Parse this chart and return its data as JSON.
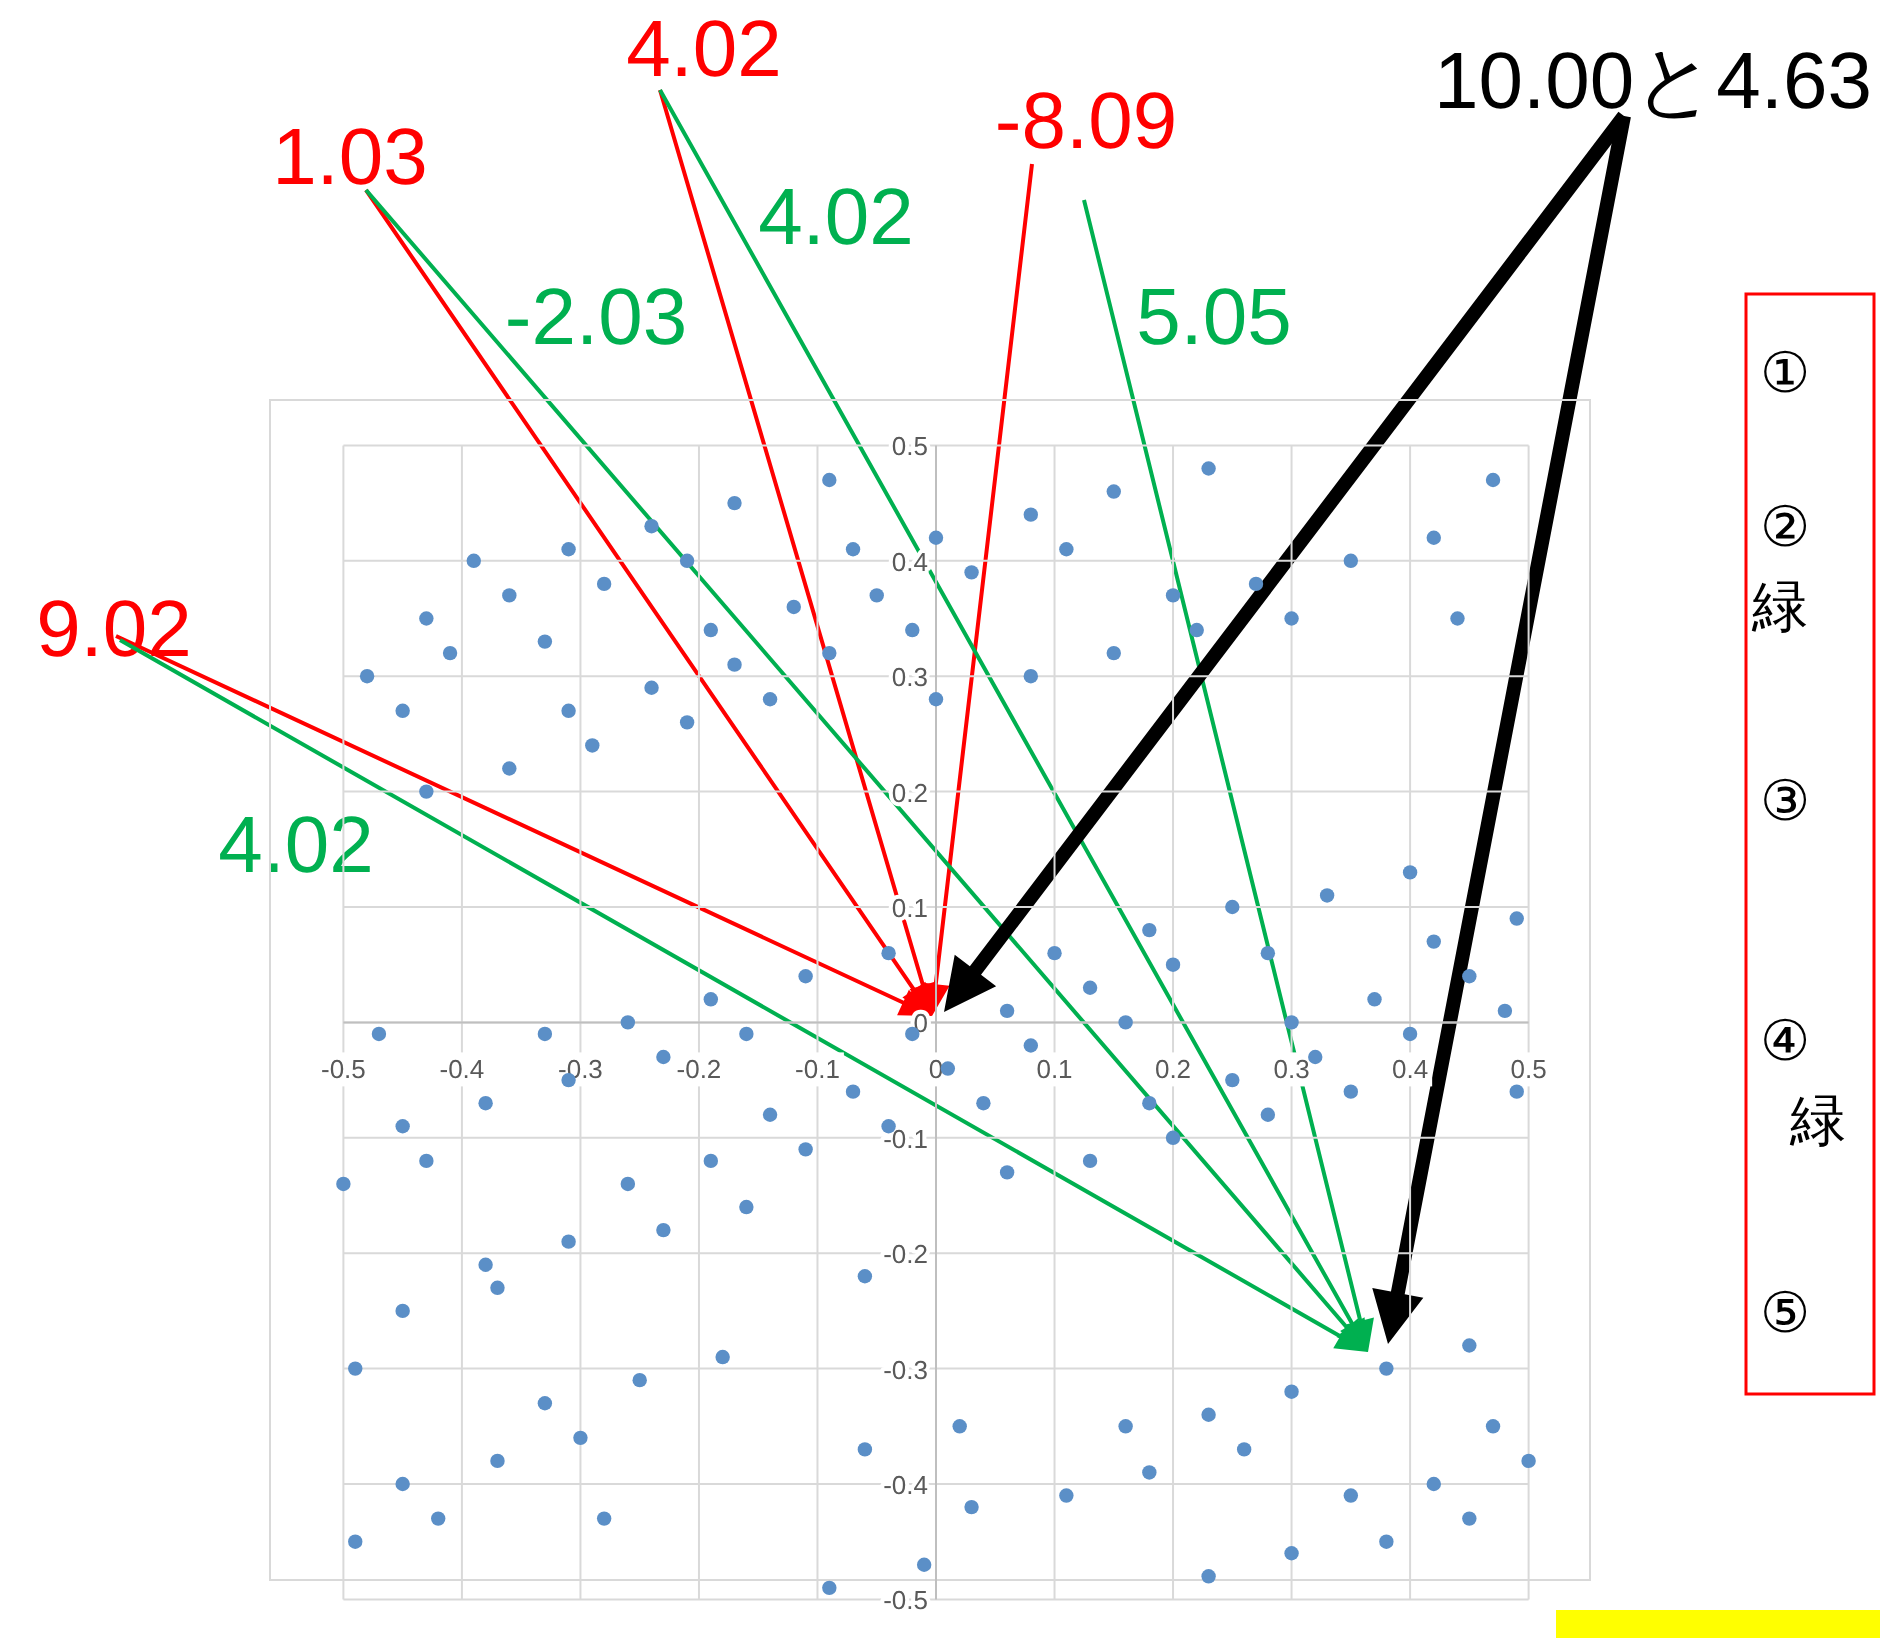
{
  "chart_data": {
    "type": "scatter",
    "marker": "circle",
    "grid": true,
    "color": "#5b8fc7",
    "xlim": [
      -0.5,
      0.5
    ],
    "ylim": [
      -0.5,
      0.5
    ],
    "xticks": [
      -0.5,
      -0.4,
      -0.3,
      -0.2,
      -0.1,
      0,
      0.1,
      0.2,
      0.3,
      0.4,
      0.5
    ],
    "yticks": [
      -0.5,
      -0.4,
      -0.3,
      -0.2,
      -0.1,
      0,
      0.1,
      0.2,
      0.3,
      0.4,
      0.5
    ],
    "x": [
      -0.48,
      -0.45,
      -0.43,
      -0.43,
      -0.41,
      -0.39,
      -0.36,
      -0.36,
      -0.33,
      -0.31,
      -0.31,
      -0.29,
      -0.28,
      -0.24,
      -0.24,
      -0.21,
      -0.21,
      -0.19,
      -0.17,
      -0.17,
      -0.14,
      -0.12,
      -0.09,
      -0.09,
      -0.07,
      -0.05,
      -0.02,
      -0.04,
      -0.11,
      -0.19,
      -0.26,
      -0.47,
      -0.33,
      0.0,
      0.0,
      0.03,
      0.08,
      0.11,
      0.15,
      0.08,
      0.15,
      0.2,
      0.23,
      0.27,
      0.3,
      0.35,
      0.42,
      0.47,
      0.44,
      0.22,
      0.4,
      0.33,
      0.25,
      0.18,
      0.49,
      0.28,
      0.42,
      0.1,
      0.2,
      0.45,
      0.13,
      0.37,
      0.06,
      0.48,
      0.3,
      0.16,
      0.4,
      -0.23,
      -0.16,
      -0.02,
      -0.31,
      -0.38,
      -0.07,
      -0.45,
      -0.14,
      -0.04,
      -0.11,
      -0.43,
      -0.5,
      -0.19,
      -0.26,
      -0.16,
      -0.23,
      -0.31,
      -0.38,
      -0.37,
      -0.06,
      -0.45,
      -0.49,
      -0.18,
      -0.25,
      -0.33,
      -0.3,
      -0.06,
      -0.37,
      -0.45,
      -0.42,
      -0.49,
      -0.28,
      -0.01,
      -0.09,
      0.01,
      0.08,
      0.04,
      0.18,
      0.25,
      0.32,
      0.28,
      0.35,
      0.49,
      0.2,
      0.13,
      0.06,
      0.38,
      0.45,
      0.3,
      0.23,
      0.02,
      0.16,
      0.26,
      0.47,
      0.5,
      0.18,
      0.42,
      0.11,
      0.35,
      0.03,
      0.45,
      0.38,
      0.3,
      0.23
    ],
    "values": [
      0.3,
      0.27,
      0.35,
      0.2,
      0.32,
      0.4,
      0.37,
      0.22,
      0.33,
      0.41,
      0.27,
      0.24,
      0.38,
      0.43,
      0.29,
      0.4,
      0.26,
      0.34,
      0.45,
      0.31,
      0.28,
      0.36,
      0.32,
      0.47,
      0.41,
      0.37,
      0.34,
      0.06,
      0.04,
      0.02,
      0.0,
      -0.01,
      -0.01,
      0.42,
      0.28,
      0.39,
      0.44,
      0.41,
      0.46,
      0.3,
      0.32,
      0.37,
      0.48,
      0.38,
      0.35,
      0.4,
      0.42,
      0.47,
      0.35,
      0.34,
      0.13,
      0.11,
      0.1,
      0.08,
      0.09,
      0.06,
      0.07,
      0.06,
      0.05,
      0.04,
      0.03,
      0.02,
      0.01,
      0.01,
      0.0,
      0.0,
      -0.01,
      -0.03,
      -0.01,
      -0.01,
      -0.05,
      -0.07,
      -0.06,
      -0.09,
      -0.08,
      -0.09,
      -0.11,
      -0.12,
      -0.14,
      -0.12,
      -0.14,
      -0.16,
      -0.18,
      -0.19,
      -0.21,
      -0.23,
      -0.22,
      -0.25,
      -0.3,
      -0.29,
      -0.31,
      -0.33,
      -0.36,
      -0.37,
      -0.38,
      -0.4,
      -0.43,
      -0.45,
      -0.43,
      -0.47,
      -0.49,
      -0.04,
      -0.02,
      -0.07,
      -0.07,
      -0.05,
      -0.03,
      -0.08,
      -0.06,
      -0.06,
      -0.1,
      -0.12,
      -0.13,
      -0.3,
      -0.28,
      -0.32,
      -0.34,
      -0.35,
      -0.35,
      -0.37,
      -0.35,
      -0.38,
      -0.39,
      -0.4,
      -0.41,
      -0.41,
      -0.42,
      -0.43,
      -0.45,
      -0.46,
      -0.48
    ],
    "annotations": [
      "1.03",
      "4.02",
      "-8.09",
      "9.02",
      "-2.03",
      "4.02",
      "5.05",
      "4.02",
      "10.00と4.63",
      "①",
      "②",
      "緑",
      "③",
      "④",
      "緑",
      "⑤"
    ]
  }
}
